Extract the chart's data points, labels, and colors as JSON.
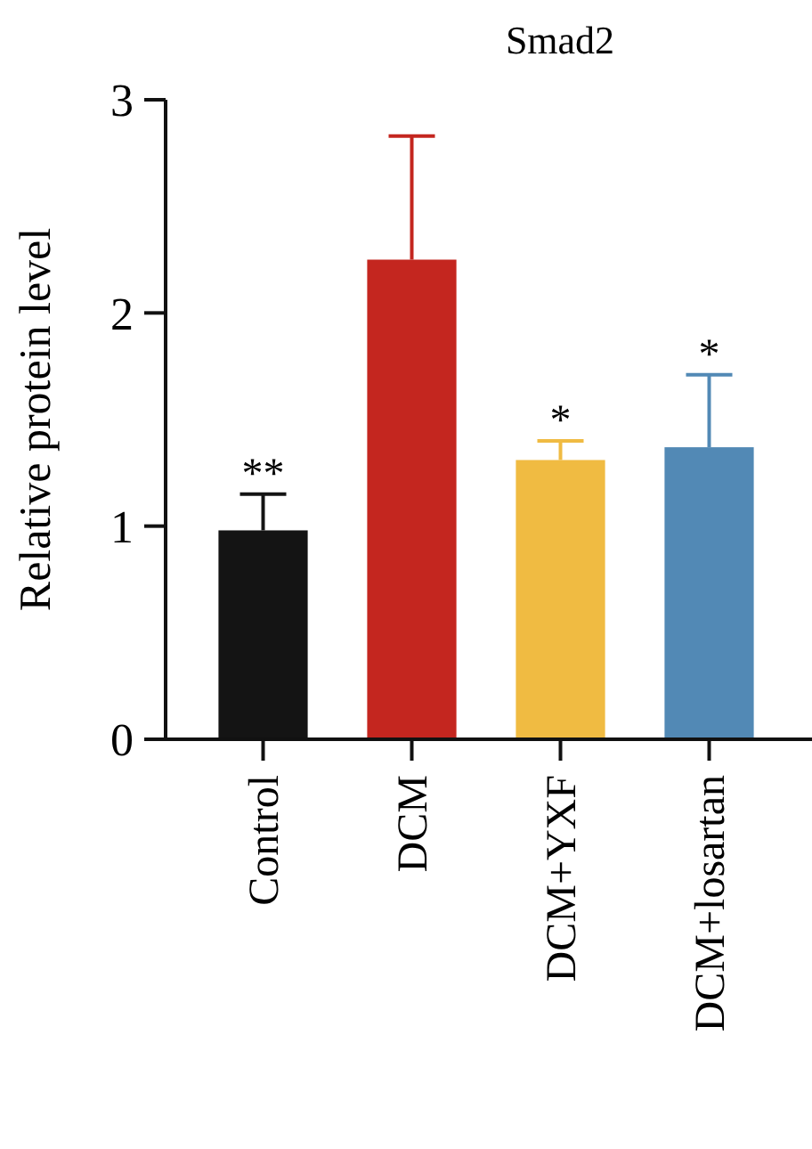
{
  "chart_data": {
    "type": "bar",
    "title": "Smad2",
    "ylabel": "Relative protein level",
    "categories": [
      "Control",
      "DCM",
      "DCM+YXF",
      "DCM+losartan"
    ],
    "values": [
      0.98,
      2.25,
      1.31,
      1.37
    ],
    "colors": [
      "#141414",
      "#c4261f",
      "#f0bb42",
      "#5289b5"
    ],
    "errors": [
      [
        0.98,
        1.15
      ],
      [
        2.25,
        2.83
      ],
      [
        1.31,
        1.4
      ],
      [
        1.37,
        1.71
      ]
    ],
    "ylim": [
      0,
      3
    ],
    "yticks": [
      0,
      1,
      2,
      3
    ],
    "grid": false,
    "annotations": [
      {
        "text": "**",
        "x": "Control",
        "y": 1.15
      },
      {
        "text": "*",
        "x": "DCM+YXF",
        "y": 1.4
      },
      {
        "text": "*",
        "x": "DCM+losartan",
        "y": 1.71
      }
    ]
  }
}
